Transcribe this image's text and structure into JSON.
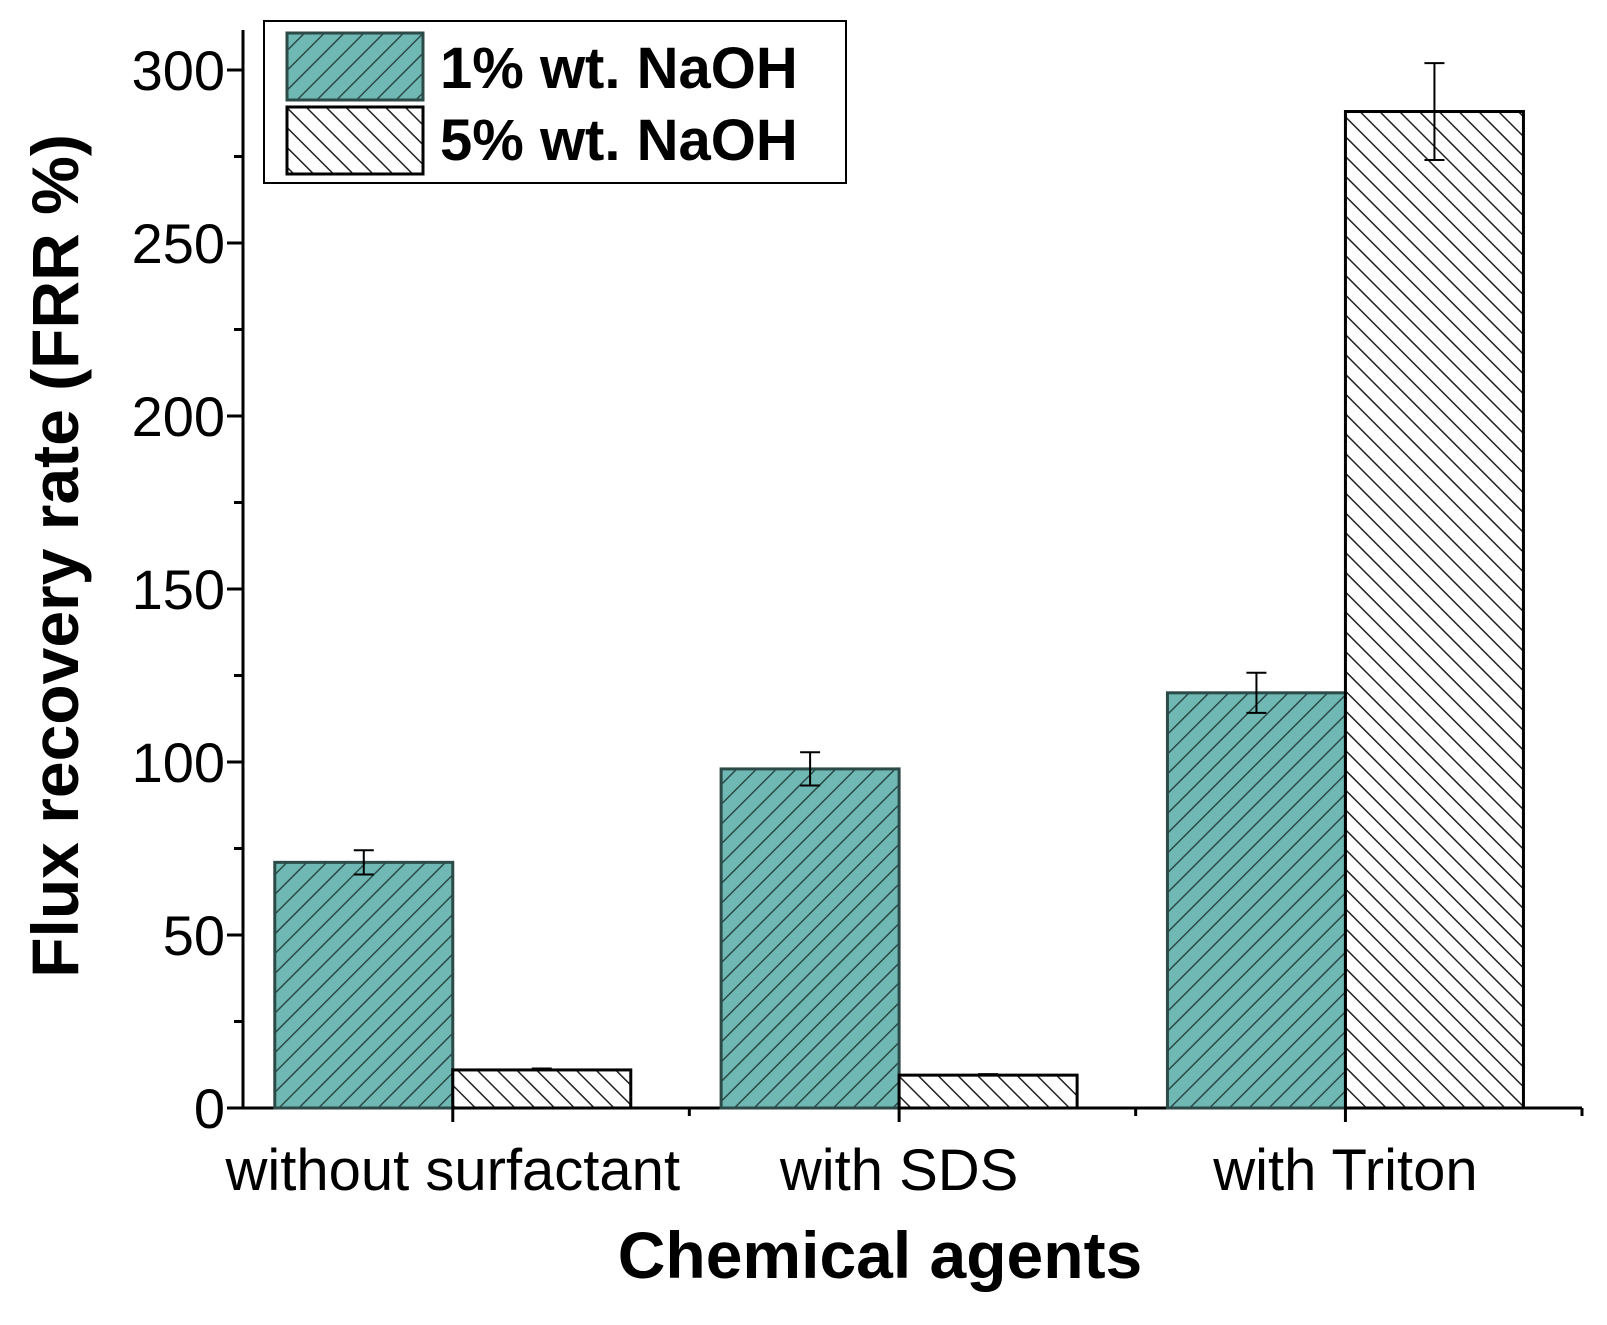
{
  "chart_data": {
    "type": "bar",
    "title": "",
    "xlabel": "Chemical agents",
    "ylabel": "Flux recovery rate (FRR %)",
    "categories": [
      "without surfactant",
      "with SDS",
      "with Triton"
    ],
    "ylim": [
      0,
      300
    ],
    "yticks": [
      0,
      50,
      100,
      150,
      200,
      250,
      300
    ],
    "series": [
      {
        "name": "1% wt. NaOH",
        "values": [
          71,
          98,
          120
        ],
        "errors": [
          3.5,
          4.8,
          5.8
        ],
        "color": "#6fb8b4",
        "hatch": "forward-diagonal"
      },
      {
        "name": "5% wt. NaOH",
        "values": [
          11,
          9.5,
          288
        ],
        "errors": [
          0.4,
          0.3,
          14
        ],
        "color": "#ffffff",
        "hatch": "back-diagonal"
      }
    ],
    "legend_position": "top-left"
  }
}
